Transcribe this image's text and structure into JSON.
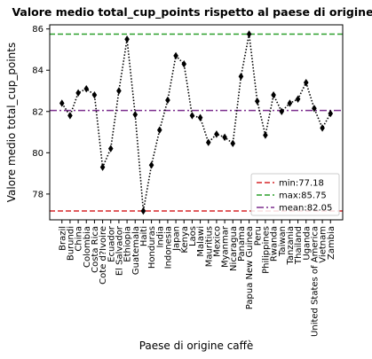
{
  "chart_data": {
    "type": "line",
    "title": "Valore medio total_cup_points rispetto al paese di origine",
    "xlabel": "Paese di origine caffè",
    "ylabel": "Valore medio total_cup_points",
    "categories": [
      "Brazil",
      "Burundi",
      "China",
      "Colombia",
      "Costa Rica",
      "Cote d?Ivoire",
      "Ecuador",
      "El Salvador",
      "Ethiopia",
      "Guatemala",
      "Haiti",
      "Honduras",
      "India",
      "Indonesia",
      "Japan",
      "Kenya",
      "Laos",
      "Malawi",
      "Mauritius",
      "Mexico",
      "Myanmar",
      "Nicaragua",
      "Panama",
      "Papua New Guinea",
      "Peru",
      "Philippines",
      "Rwanda",
      "Taiwan",
      "Tanzania",
      "Thailand",
      "Uganda",
      "United States of America",
      "Vietnam",
      "Zambia"
    ],
    "series": [
      {
        "values": [
          82.4,
          81.8,
          82.9,
          83.1,
          82.8,
          79.3,
          80.2,
          83.0,
          85.5,
          81.85,
          77.18,
          79.4,
          81.1,
          82.55,
          84.7,
          84.3,
          81.8,
          81.7,
          80.5,
          80.9,
          80.75,
          80.45,
          83.7,
          85.75,
          82.5,
          80.85,
          82.8,
          82.0,
          82.4,
          82.6,
          83.4,
          82.15,
          81.2,
          81.9
        ],
        "color": "#000000",
        "line": "dotted",
        "marker": "diamond"
      }
    ],
    "reference_lines": [
      {
        "label": "min:77.18",
        "value": 77.18,
        "color": "#d62728",
        "style": "dashed"
      },
      {
        "label": "max:85.75",
        "value": 85.75,
        "color": "#2ca02c",
        "style": "dashed"
      },
      {
        "label": "mean:82.05",
        "value": 82.05,
        "color": "#7b2f8e",
        "style": "dashdot"
      }
    ],
    "yticks": [
      78,
      80,
      82,
      84,
      86
    ],
    "ylim": [
      76.75,
      86.2
    ],
    "grid": false,
    "legend_position": "lower-right"
  }
}
